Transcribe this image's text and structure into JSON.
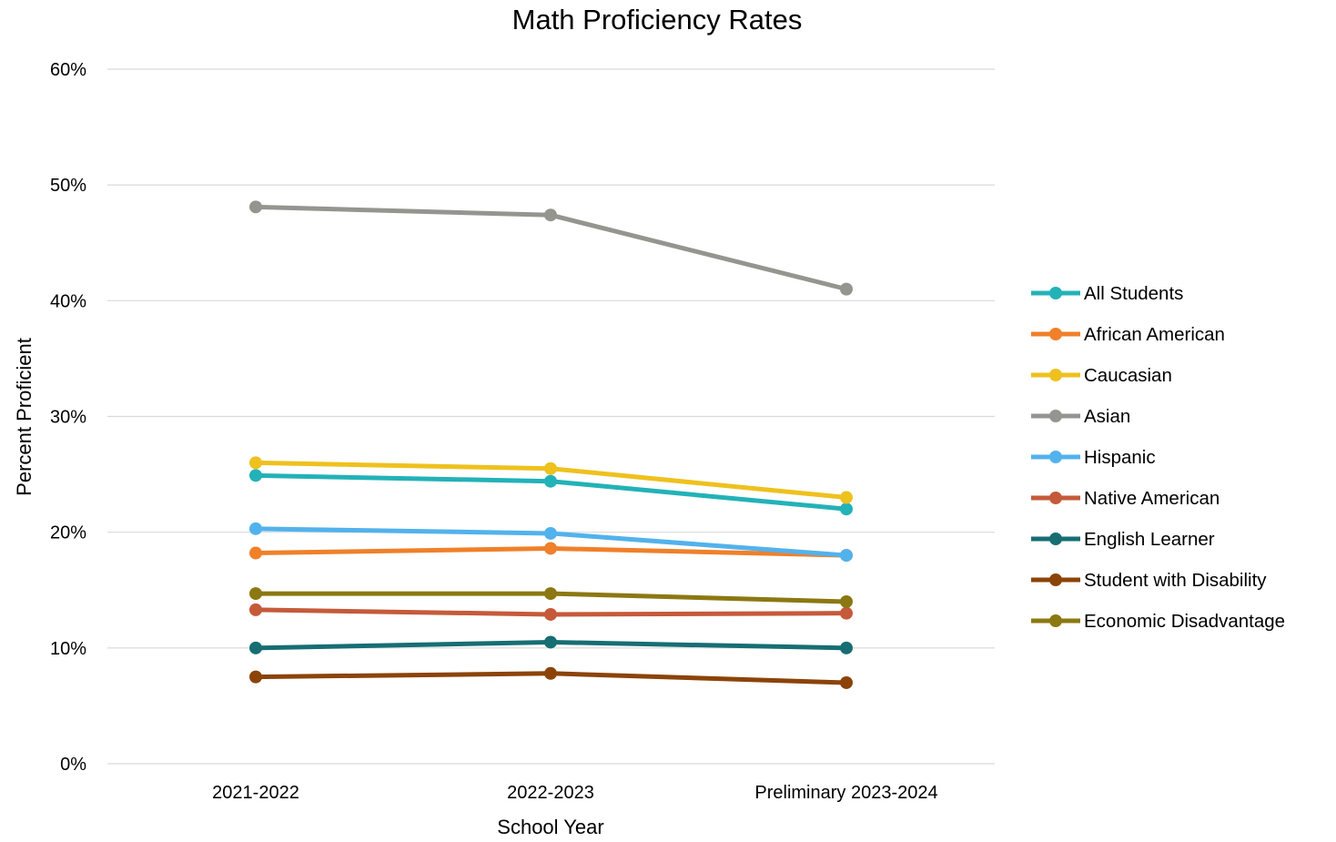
{
  "chart_data": {
    "type": "line",
    "title": "Math Proficiency Rates",
    "xlabel": "School Year",
    "ylabel": "Percent Proficient",
    "categories": [
      "2021-2022",
      "2022-2023",
      "Preliminary 2023-2024"
    ],
    "ylim": [
      0,
      60
    ],
    "yticks": [
      0,
      10,
      20,
      30,
      40,
      50,
      60
    ],
    "ytick_labels": [
      "0%",
      "10%",
      "20%",
      "30%",
      "40%",
      "50%",
      "60%"
    ],
    "grid": true,
    "legend_position": "right",
    "series": [
      {
        "name": "All Students",
        "color": "#22B2B8",
        "values": [
          24.9,
          24.4,
          22.0
        ]
      },
      {
        "name": "African American",
        "color": "#F0802A",
        "values": [
          18.2,
          18.6,
          18.0
        ]
      },
      {
        "name": "Caucasian",
        "color": "#EEC11E",
        "values": [
          26.0,
          25.5,
          23.0
        ]
      },
      {
        "name": "Asian",
        "color": "#959590",
        "values": [
          48.1,
          47.4,
          41.0
        ]
      },
      {
        "name": "Hispanic",
        "color": "#52B2EC",
        "values": [
          20.3,
          19.9,
          18.0
        ]
      },
      {
        "name": "Native American",
        "color": "#C55A3A",
        "values": [
          13.3,
          12.9,
          13.0
        ]
      },
      {
        "name": "English Learner",
        "color": "#166E73",
        "values": [
          10.0,
          10.5,
          10.0
        ]
      },
      {
        "name": "Student with Disability",
        "color": "#8C4308",
        "values": [
          7.5,
          7.8,
          7.0
        ]
      },
      {
        "name": "Economic Disadvantage",
        "color": "#8C7812",
        "values": [
          14.7,
          14.7,
          14.0
        ]
      }
    ]
  }
}
